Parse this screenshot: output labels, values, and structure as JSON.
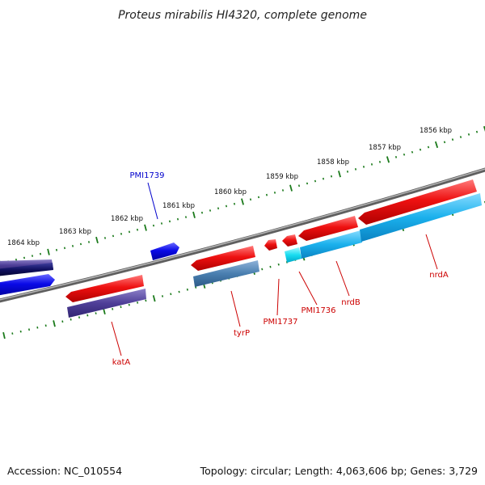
{
  "title": "Proteus mirabilis HI4320, complete genome",
  "footer": {
    "accession": "Accession: NC_010554",
    "stats": "Topology: circular; Length: 4,063,606 bp; Genes: 3,729"
  },
  "scale_labels": [
    "1864 kbp",
    "1863 kbp",
    "1862 kbp",
    "1861 kbp",
    "1860 kbp",
    "1859 kbp",
    "1858 kbp",
    "1857 kbp",
    "1856 kbp"
  ],
  "gene_labels": [
    {
      "text": "PMI1739",
      "color": "#0000cc"
    },
    {
      "text": "katA",
      "color": "#cc0000"
    },
    {
      "text": "tyrP",
      "color": "#cc0000"
    },
    {
      "text": "PMI1737",
      "color": "#cc0000"
    },
    {
      "text": "PMI1736",
      "color": "#cc0000"
    },
    {
      "text": "nrdB",
      "color": "#cc0000"
    },
    {
      "text": "nrdA",
      "color": "#cc0000"
    }
  ],
  "colors": {
    "backbone": "#808080",
    "cds": "#ee0000",
    "blue_gene": "#0000ee",
    "tick": "#1b7a1b",
    "label_red": "#cc0000",
    "label_blue": "#0000cc"
  }
}
